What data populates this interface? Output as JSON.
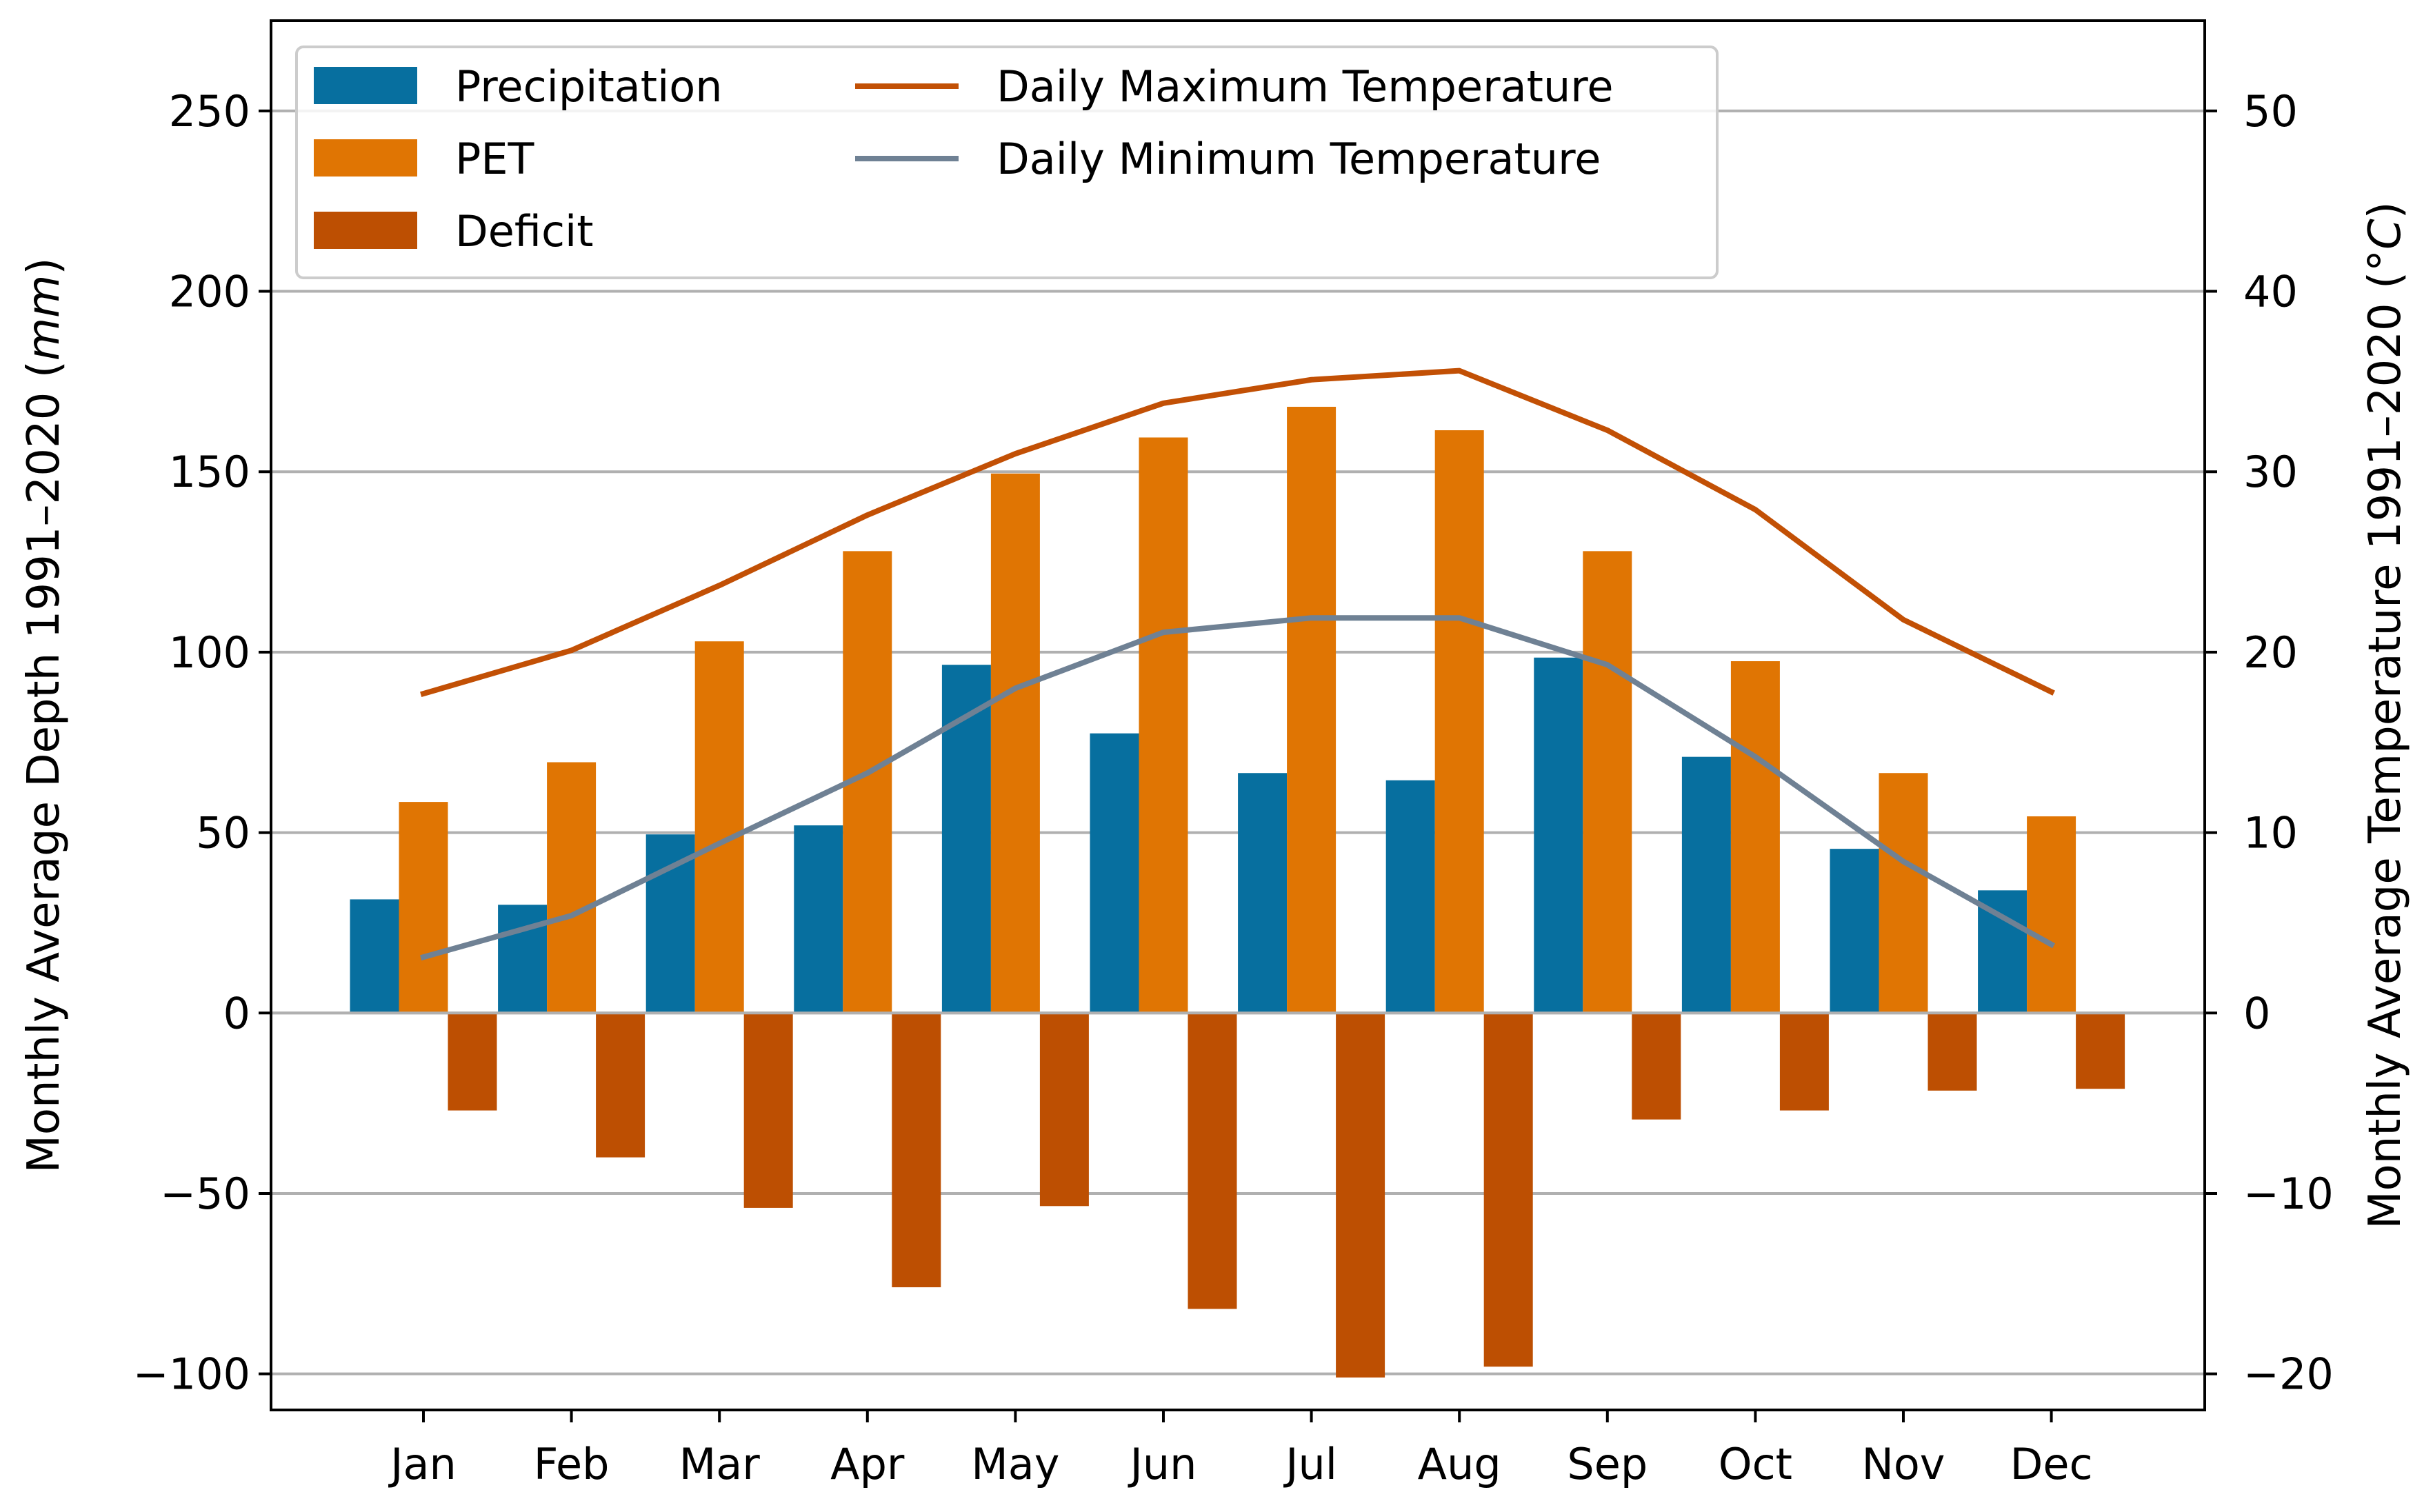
{
  "chart_data": {
    "type": "bar+line",
    "title": "",
    "categories": [
      "Jan",
      "Feb",
      "Mar",
      "Apr",
      "May",
      "Jun",
      "Jul",
      "Aug",
      "Sep",
      "Oct",
      "Nov",
      "Dec"
    ],
    "series": [
      {
        "name": "Precipitation",
        "type": "bar",
        "axis": "left",
        "color": "#076f9f",
        "values": [
          31.5,
          30,
          49.5,
          52,
          96.5,
          77.5,
          66.5,
          64.5,
          98.5,
          71,
          45.5,
          34
        ]
      },
      {
        "name": "PET",
        "type": "bar",
        "axis": "left",
        "color": "#e07503",
        "values": [
          58.5,
          69.5,
          103,
          128,
          149.5,
          159.5,
          168,
          161.5,
          128,
          97.5,
          66.5,
          54.5
        ]
      },
      {
        "name": "Deficit",
        "type": "bar",
        "axis": "left",
        "color": "#bd4f02",
        "values": [
          -27,
          -40,
          -54,
          -76,
          -53.5,
          -82,
          -101,
          -98,
          -29.5,
          -27,
          -21.5,
          -21
        ]
      },
      {
        "name": "Daily Maximum Temperature",
        "type": "line",
        "axis": "right",
        "color": "#c25005",
        "values": [
          17.7,
          20.1,
          23.7,
          27.6,
          31,
          33.8,
          35.1,
          35.6,
          32.3,
          27.9,
          21.8,
          17.8
        ]
      },
      {
        "name": "Daily Minimum Temperature",
        "type": "line",
        "axis": "right",
        "color": "#6f8194",
        "values": [
          3.1,
          5.4,
          9.4,
          13.3,
          18,
          21.1,
          21.9,
          21.9,
          19.3,
          14.2,
          8.4,
          3.8
        ]
      }
    ],
    "ylabel": "Monthly Average Depth 1991–2020 (mm)",
    "ylabel_main": "Monthly Average Depth 1991–2020 (",
    "ylabel_unit": "mm",
    "ylabel_close": ")",
    "ylim": [
      -110,
      275
    ],
    "yticks": [
      -100,
      -50,
      0,
      50,
      100,
      150,
      200,
      250
    ],
    "ytick_labels": [
      "−100",
      "−50",
      "0",
      "50",
      "100",
      "150",
      "200",
      "250"
    ],
    "y2label": "Monthly Average Temperature 1991–2020 (°C)",
    "y2label_main": "Monthly Average Temperature 1991–2020 (°",
    "y2label_unit": "C",
    "y2label_close": ")",
    "y2lim": [
      -22,
      55
    ],
    "y2ticks": [
      -20,
      -10,
      0,
      10,
      20,
      30,
      40,
      50
    ],
    "y2tick_labels": [
      "−20",
      "−10",
      "0",
      "10",
      "20",
      "30",
      "40",
      "50"
    ],
    "grid": "horizontal",
    "grid_color": "#b0b0b0",
    "legend_position": "upper-left"
  }
}
